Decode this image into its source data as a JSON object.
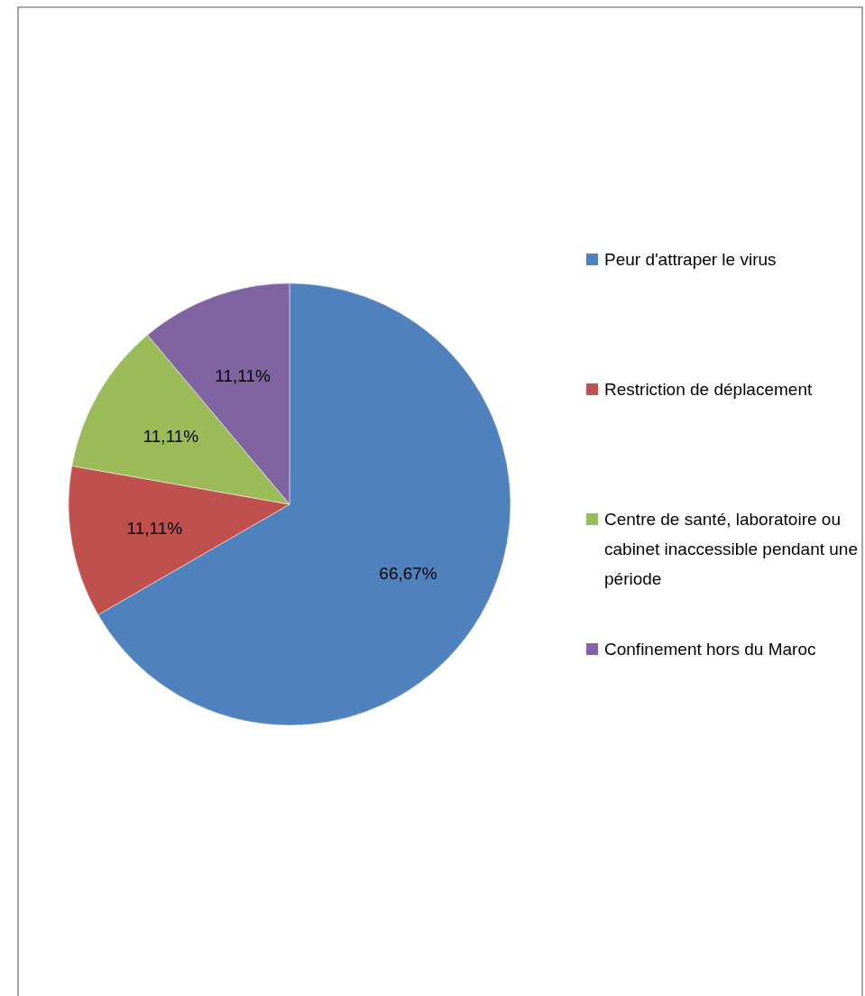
{
  "chart_data": {
    "type": "pie",
    "categories": [
      "Peur d'attraper le virus",
      "Restriction de déplacement",
      "Centre de santé, laboratoire ou cabinet inaccessible pendant une période",
      "Confinement hors du Maroc"
    ],
    "values": [
      66.67,
      11.11,
      11.11,
      11.11
    ],
    "colors": [
      "#4f81bd",
      "#c0504d",
      "#9bbb59",
      "#8064a2"
    ],
    "value_labels": [
      "66,67%",
      "11,11%",
      "11,11%",
      "11,11%"
    ],
    "legend": "right"
  }
}
